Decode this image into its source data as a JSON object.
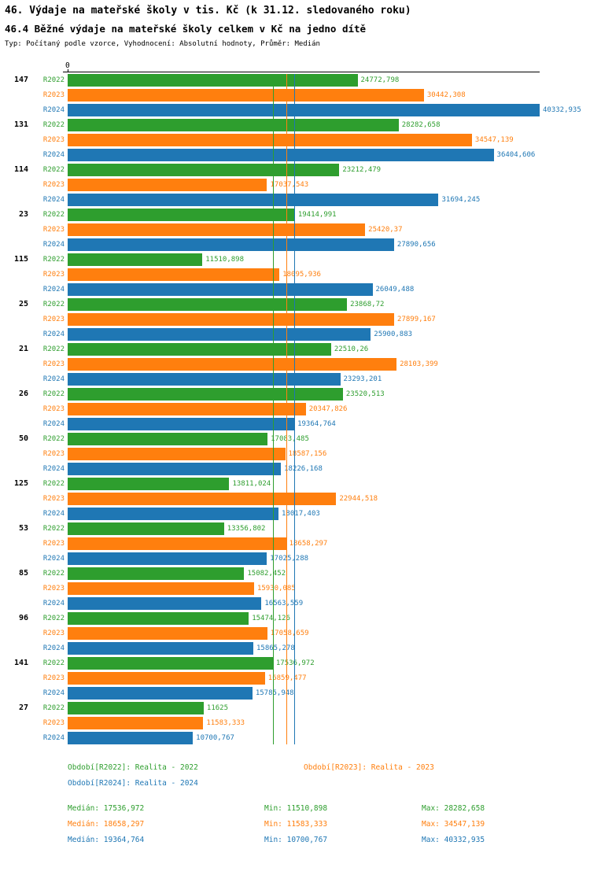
{
  "header": {
    "title": "46. Výdaje na mateřské školy v tis. Kč (k 31.12. sledovaného roku)",
    "subtitle": "46.4 Běžné výdaje na mateřské školy celkem v Kč na jedno dítě",
    "meta": "Typ: Počítaný podle vzorce, Vyhodnocení: Absolutní hodnoty, Průměr: Medián"
  },
  "chart_data": {
    "type": "bar",
    "orientation": "horizontal",
    "axis_zero_label": "0",
    "xmax": 40332.935,
    "xlim": [
      0,
      40332.935
    ],
    "series": [
      {
        "name": "R2022",
        "color": "#2e9e2e"
      },
      {
        "name": "R2023",
        "color": "#ff7f0e"
      },
      {
        "name": "R2024",
        "color": "#1f77b4"
      }
    ],
    "median_lines": [
      {
        "series": "R2022",
        "value": 17536.972,
        "color": "#2e9e2e"
      },
      {
        "series": "R2023",
        "value": 18658.297,
        "color": "#ff7f0e"
      },
      {
        "series": "R2024",
        "value": 19364.764,
        "color": "#1f77b4"
      }
    ],
    "groups": [
      {
        "id": "147",
        "values": [
          24772.798,
          30442.308,
          40332.935
        ],
        "labels": [
          "24772,798",
          "30442,308",
          "40332,935"
        ]
      },
      {
        "id": "131",
        "values": [
          28282.658,
          34547.139,
          36404.606
        ],
        "labels": [
          "28282,658",
          "34547,139",
          "36404,606"
        ]
      },
      {
        "id": "114",
        "values": [
          23212.479,
          17037.543,
          31694.245
        ],
        "labels": [
          "23212,479",
          "17037,543",
          "31694,245"
        ]
      },
      {
        "id": "23",
        "values": [
          19414.991,
          25420.37,
          27890.656
        ],
        "labels": [
          "19414,991",
          "25420,37",
          "27890,656"
        ]
      },
      {
        "id": "115",
        "values": [
          11510.898,
          18095.936,
          26049.488
        ],
        "labels": [
          "11510,898",
          "18095,936",
          "26049,488"
        ]
      },
      {
        "id": "25",
        "values": [
          23868.72,
          27899.167,
          25900.883
        ],
        "labels": [
          "23868,72",
          "27899,167",
          "25900,883"
        ]
      },
      {
        "id": "21",
        "values": [
          22510.26,
          28103.399,
          23293.201
        ],
        "labels": [
          "22510,26",
          "28103,399",
          "23293,201"
        ]
      },
      {
        "id": "26",
        "values": [
          23520.513,
          20347.826,
          19364.764
        ],
        "labels": [
          "23520,513",
          "20347,826",
          "19364,764"
        ]
      },
      {
        "id": "50",
        "values": [
          17083.485,
          18587.156,
          18226.168
        ],
        "labels": [
          "17083,485",
          "18587,156",
          "18226,168"
        ]
      },
      {
        "id": "125",
        "values": [
          13811.024,
          22944.518,
          18017.403
        ],
        "labels": [
          "13811,024",
          "22944,518",
          "18017,403"
        ]
      },
      {
        "id": "53",
        "values": [
          13356.802,
          18658.297,
          17025.288
        ],
        "labels": [
          "13356,802",
          "18658,297",
          "17025,288"
        ]
      },
      {
        "id": "85",
        "values": [
          15082.452,
          15930.085,
          16563.559
        ],
        "labels": [
          "15082,452",
          "15930,085",
          "16563,559"
        ]
      },
      {
        "id": "96",
        "values": [
          15474.126,
          17058.659,
          15865.278
        ],
        "labels": [
          "15474,126",
          "17058,659",
          "15865,278"
        ]
      },
      {
        "id": "141",
        "values": [
          17536.972,
          16859.477,
          15785.948
        ],
        "labels": [
          "17536,972",
          "16859,477",
          "15785,948"
        ]
      },
      {
        "id": "27",
        "values": [
          11625,
          11583.333,
          10700.767
        ],
        "labels": [
          "11625",
          "11583,333",
          "10700,767"
        ]
      }
    ]
  },
  "legend": {
    "items": [
      {
        "label": "Období[R2022]: Realita - 2022",
        "color": "#2e9e2e"
      },
      {
        "label": "Období[R2023]: Realita - 2023",
        "color": "#ff7f0e"
      },
      {
        "label": "Období[R2024]: Realita - 2024",
        "color": "#1f77b4"
      }
    ]
  },
  "stats": {
    "rows": [
      {
        "median": "Medián: 17536,972",
        "min": "Min: 11510,898",
        "max": "Max: 28282,658",
        "color": "#2e9e2e"
      },
      {
        "median": "Medián: 18658,297",
        "min": "Min: 11583,333",
        "max": "Max: 34547,139",
        "color": "#ff7f0e"
      },
      {
        "median": "Medián: 19364,764",
        "min": "Min: 10700,767",
        "max": "Max: 40332,935",
        "color": "#1f77b4"
      }
    ]
  }
}
